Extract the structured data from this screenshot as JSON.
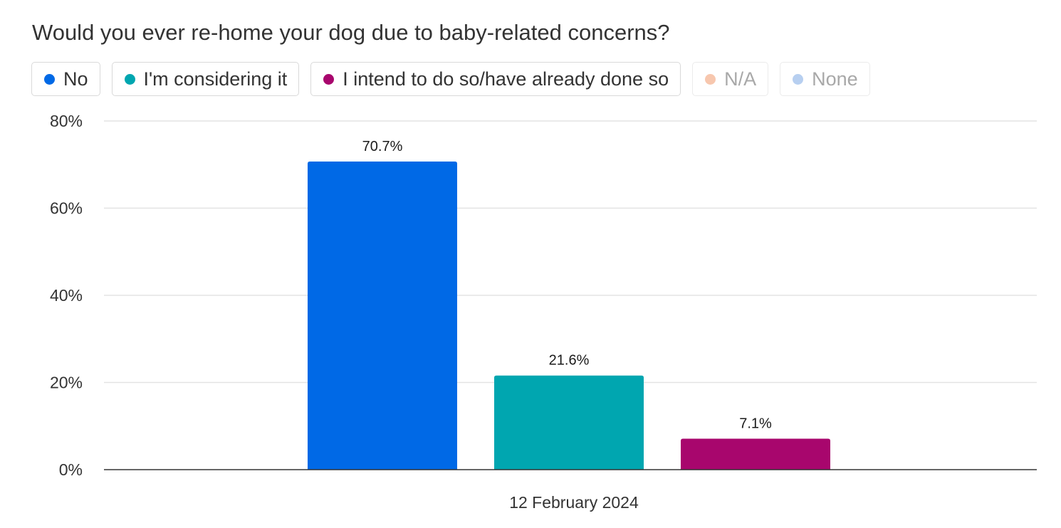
{
  "title": "Would you ever re-home your dog due to baby-related concerns?",
  "legend": [
    {
      "label": "No",
      "color": "#0069e6",
      "active": true
    },
    {
      "label": "I'm considering it",
      "color": "#00a6b0",
      "active": true
    },
    {
      "label": "I intend to do so/have already done so",
      "color": "#a8066d",
      "active": true
    },
    {
      "label": "N/A",
      "color": "#f7c7ae",
      "active": false
    },
    {
      "label": "None",
      "color": "#b7cff0",
      "active": false
    }
  ],
  "chart_data": {
    "type": "bar",
    "title": "Would you ever re-home your dog due to baby-related concerns?",
    "categories": [
      "12 February 2024"
    ],
    "series": [
      {
        "name": "No",
        "values": [
          70.7
        ],
        "color": "#0069e6"
      },
      {
        "name": "I'm considering it",
        "values": [
          21.6
        ],
        "color": "#00a6b0"
      },
      {
        "name": "I intend to do so/have already done so",
        "values": [
          7.1
        ],
        "color": "#a8066d"
      }
    ],
    "value_labels": [
      "70.7%",
      "21.6%",
      "7.1%"
    ],
    "yticks": [
      0,
      20,
      40,
      60,
      80
    ],
    "ytick_labels": [
      "0%",
      "20%",
      "40%",
      "60%",
      "80%"
    ],
    "ylim": [
      0,
      80
    ],
    "unit": "%",
    "grid": true,
    "legend_position": "top-left"
  }
}
